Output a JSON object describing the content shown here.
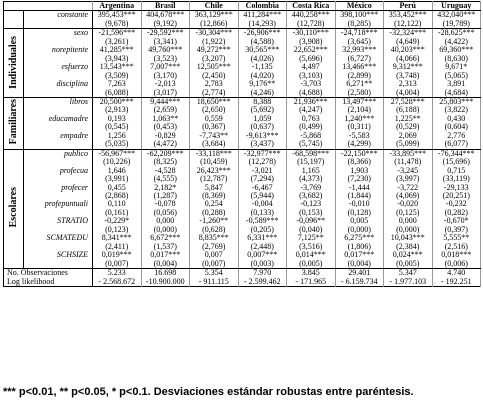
{
  "columns": [
    "Argentina",
    "Brasil",
    "Chile",
    "Colombia",
    "Costa Rica",
    "México",
    "Perú",
    "Uruguay"
  ],
  "constant": {
    "name": "constante",
    "values": [
      "395,453***",
      "404,678***",
      "363,129***",
      "411,284***",
      "440,258***",
      "398,100***",
      "353,452***",
      "432,040***"
    ],
    "se": [
      "(9,678)",
      "(9,192)",
      "(12,866)",
      "(14,293)",
      "(12,728)",
      "(8,285)",
      "(12,122)",
      "(19,789)"
    ]
  },
  "groups": [
    {
      "label": "Individuales",
      "rows": [
        {
          "name": "sexo",
          "values": [
            "-21,596***",
            "-29,592***",
            "-30,304***",
            "-26,906***",
            "-30,110***",
            "-24,718***",
            "-32,324***",
            "-28,625***"
          ],
          "se": [
            "(3,261)",
            "(3,341)",
            "(1,922)",
            "(4,588)",
            "(3,908)",
            "(3,645)",
            "(4,649)",
            "(4,422)"
          ]
        },
        {
          "name": "norepitente",
          "values": [
            "41,285***",
            "49,760***",
            "49,272***",
            "30,565***",
            "22,652***",
            "32,993***",
            "40,203***",
            "69,360***"
          ],
          "se": [
            "(3,943)",
            "(3,523)",
            "(3,207)",
            "(4,026)",
            "(5,696)",
            "(6,727)",
            "(4,066)",
            "(8,630)"
          ]
        },
        {
          "name": "esfuerzo",
          "values": [
            "13,543***",
            "7,007***",
            "12,505***",
            "-1,135",
            "4,497",
            "13,466***",
            "9,312***",
            "9,671*"
          ],
          "se": [
            "(3,509)",
            "(3,170)",
            "(2,450)",
            "(4,020)",
            "(3,103)",
            "(2,899)",
            "(3,748)",
            "(5,065)"
          ]
        },
        {
          "name": "disciplina",
          "values": [
            "7,263",
            "-2,013",
            "2,783",
            "9,176**",
            "-3,703",
            "6,271**",
            "2,313",
            "3,891"
          ],
          "se": [
            "(6,088)",
            "(3,017)",
            "(2,774)",
            "(4,246)",
            "(4,688)",
            "(2,580)",
            "(4,004)",
            "(4,684)"
          ]
        }
      ]
    },
    {
      "label": "Familiares",
      "rows": [
        {
          "name": "libros",
          "values": [
            "20,500***",
            "9,444***",
            "18,650***",
            "8,388",
            "21,936***",
            "13,497***",
            "27,528***",
            "25,803***"
          ],
          "se": [
            "(2,913)",
            "(2,659)",
            "(2,650)",
            "(5,692)",
            "(4,247)",
            "(2,104)",
            "(6,188)",
            "(3,822)"
          ]
        },
        {
          "name": "educamadre",
          "values": [
            "0,193",
            "1,063**",
            "0,559",
            "1,059",
            "0,763",
            "1,240***",
            "1,225**",
            "0,430"
          ],
          "se": [
            "(0,545)",
            "(0,453)",
            "(0,367)",
            "(0,637)",
            "(0,499)",
            "(0,311)",
            "(0,529)",
            "(0,604)"
          ]
        },
        {
          "name": "empadre",
          "values": [
            "1,256",
            "-0,829",
            "-7,743**",
            "-9,613***",
            "-5,868",
            "-5,583",
            "2,069",
            "2,776"
          ],
          "se": [
            "(5,035)",
            "(4,472)",
            "(3,684)",
            "(3,437)",
            "(5,745)",
            "(4,299)",
            "(5,099)",
            "(6,077)"
          ]
        }
      ]
    },
    {
      "label": "Escolares",
      "rows": [
        {
          "name": "publico",
          "values": [
            "-56,967***",
            "-62,209***",
            "-33,118***",
            "-32,977***",
            "-68,598***",
            "-22,150***",
            "-33,895***",
            "-76,344***"
          ],
          "se": [
            "(10,226)",
            "(8,325)",
            "(10,459)",
            "(12,278)",
            "(15,197)",
            "(8,366)",
            "(11,478)",
            "(15,696)"
          ]
        },
        {
          "name": "profecua",
          "values": [
            "1,646",
            "-4,528",
            "26,423***",
            "-3,021",
            "1,165",
            "1,903",
            "-3,245",
            "0,715"
          ],
          "se": [
            "(3,991)",
            "(4,555)",
            "(12,787)",
            "(7,294)",
            "(4,373)",
            "(7,230)",
            "(3,997)",
            "(33,119)"
          ]
        },
        {
          "name": "profecer",
          "values": [
            "0,455",
            "2,182*",
            "5,847",
            "-6,467",
            "-3,769",
            "-1,444",
            "-3,722",
            "-29,133"
          ],
          "se": [
            "(2,868)",
            "(1,287)",
            "(8,369)",
            "(5,944)",
            "(3,682)",
            "(1,844)",
            "(4,069)",
            "(20,251)"
          ]
        },
        {
          "name": "profepuntuali",
          "values": [
            "0,110",
            "-0,078",
            "0,254",
            "-0,004",
            "-0,123",
            "-0,010",
            "-0,020",
            "-0,232"
          ],
          "se": [
            "(0,161)",
            "(0,056)",
            "(0,288)",
            "(0,133)",
            "(0,153)",
            "(0,128)",
            "(0,125)",
            "(0,282)"
          ]
        },
        {
          "name": "STRATIO",
          "values": [
            "-0,229*",
            "0,000",
            "-1,260**",
            "-0,589***",
            "-0,096**",
            "0,005",
            "0,000",
            "-0,670*"
          ],
          "se": [
            "(0,123)",
            "(0,000)",
            "(0,628)",
            "(0,205)",
            "(0,040)",
            "(0,000)",
            "(0,000)",
            "(0,397)"
          ]
        },
        {
          "name": "SCMATEDU",
          "values": [
            "8,341***",
            "6,672***",
            "8,835***",
            "6,331***",
            "7,125**",
            "6,275***",
            "10,043***",
            "5,555**"
          ],
          "se": [
            "(2,411)",
            "(1,537)",
            "(2,769)",
            "(2,448)",
            "(3,516)",
            "(1,806)",
            "(2,384)",
            "(2,516)"
          ]
        },
        {
          "name": "SCHSIZE",
          "values": [
            "0,019***",
            "0,017***",
            "0,007",
            "0,007***",
            "0,014***",
            "0,017***",
            "0,024***",
            "0,018***"
          ],
          "se": [
            "(0,007)",
            "(0,004)",
            "(0,007)",
            "(0,003)",
            "(0,005)",
            "(0,004)",
            "(0,005)",
            "(0,006)"
          ]
        }
      ]
    }
  ],
  "stats": [
    {
      "name": "No. Observaciones",
      "values": [
        "5.233",
        "16.698",
        "5.354",
        "7.970",
        "3.845",
        "29.401",
        "5.347",
        "4.740"
      ]
    },
    {
      "name": "Log likelihood",
      "values": [
        "- 2.568.672",
        "-10.900.000",
        "- 911.115",
        "- 2.599.462",
        "- 171.965",
        "- 6.159.734",
        "- 1.977.103",
        "- 192.251"
      ]
    }
  ],
  "footnote": "*** p<0.01, ** p<0.05, * p<0.1. Desviaciones estándar robustas entre paréntesis."
}
